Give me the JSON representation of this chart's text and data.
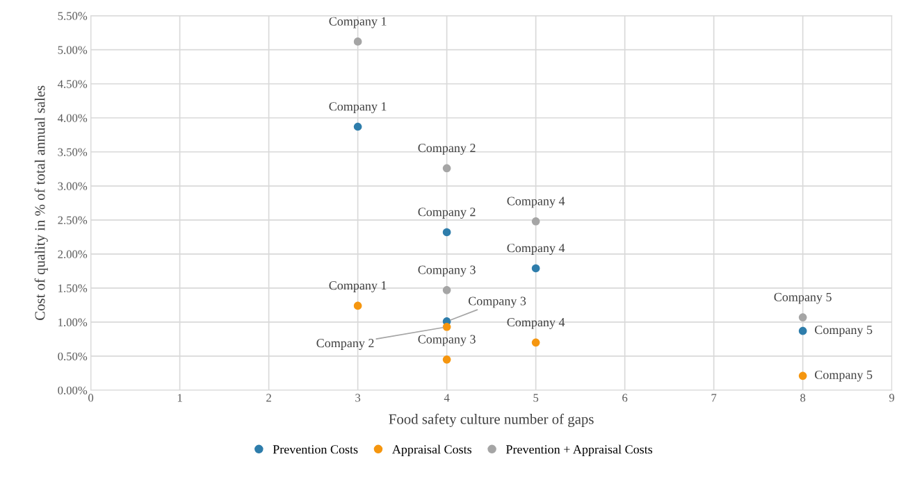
{
  "chart_data": {
    "type": "scatter",
    "xlabel": "Food safety culture number of gaps",
    "ylabel": "Cost of quality in % of total annual sales",
    "xlim": [
      0,
      9
    ],
    "xticks": [
      0,
      1,
      2,
      3,
      4,
      5,
      6,
      7,
      8,
      9
    ],
    "ylim": [
      0,
      5.5
    ],
    "yticks": [
      {
        "value": 0,
        "label": "0.00%"
      },
      {
        "value": 0.5,
        "label": "0.50%"
      },
      {
        "value": 1,
        "label": "1.00%"
      },
      {
        "value": 1.5,
        "label": "1.50%"
      },
      {
        "value": 2,
        "label": "2.00%"
      },
      {
        "value": 2.5,
        "label": "2.50%"
      },
      {
        "value": 3,
        "label": "3.00%"
      },
      {
        "value": 3.5,
        "label": "3.50%"
      },
      {
        "value": 4,
        "label": "4.00%"
      },
      {
        "value": 4.5,
        "label": "4.50%"
      },
      {
        "value": 5,
        "label": "5.00%"
      },
      {
        "value": 5.5,
        "label": "5.50%"
      }
    ],
    "grid": true,
    "legend": "bottom",
    "marker": "circle",
    "series": [
      {
        "name": "Prevention Costs",
        "color": "#2e7dab",
        "x": [
          3,
          4,
          4,
          5,
          8
        ],
        "values": [
          3.87,
          2.32,
          1.01,
          1.79,
          0.87
        ]
      },
      {
        "name": "Appraisal Costs",
        "color": "#f5960f",
        "x": [
          3,
          4,
          4,
          5,
          8
        ],
        "values": [
          1.24,
          0.93,
          0.45,
          0.7,
          0.21
        ]
      },
      {
        "name": "Prevention + Appraisal Costs",
        "color": "#a5a5a5",
        "x": [
          3,
          4,
          4,
          5,
          8
        ],
        "values": [
          5.12,
          3.26,
          1.47,
          2.48,
          1.07
        ]
      }
    ],
    "annotations": [
      {
        "text": "Company 1",
        "x": 3,
        "y": 3.87
      },
      {
        "text": "Company 2",
        "x": 4,
        "y": 2.32
      },
      {
        "text": "Company 3",
        "x": 4,
        "y": 1.01
      },
      {
        "text": "Company 4",
        "x": 5,
        "y": 1.79
      },
      {
        "text": "Company 5",
        "x": 8,
        "y": 0.87
      },
      {
        "text": "Company 1",
        "x": 3,
        "y": 1.24
      },
      {
        "text": "Company 2",
        "x": 4,
        "y": 0.93
      },
      {
        "text": "Company 3",
        "x": 4,
        "y": 0.45
      },
      {
        "text": "Company 4",
        "x": 5,
        "y": 0.7
      },
      {
        "text": "Company 5",
        "x": 8,
        "y": 0.21
      },
      {
        "text": "Company 1",
        "x": 3,
        "y": 5.12
      },
      {
        "text": "Company 2",
        "x": 4,
        "y": 3.26
      },
      {
        "text": "Company 3",
        "x": 4,
        "y": 1.47
      },
      {
        "text": "Company 4",
        "x": 5,
        "y": 2.48
      },
      {
        "text": "Company 5",
        "x": 8,
        "y": 1.07
      }
    ]
  }
}
